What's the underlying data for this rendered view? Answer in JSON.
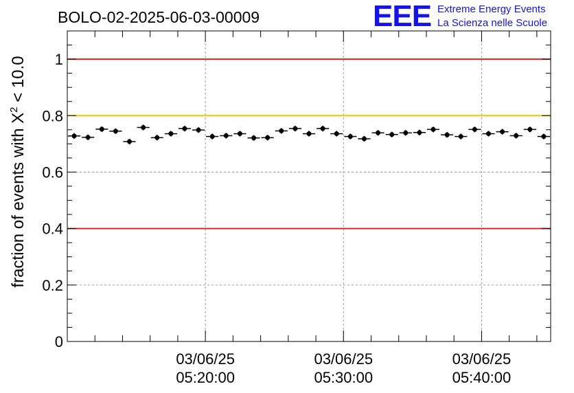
{
  "chart_data": {
    "type": "scatter",
    "title": "BOLO-02-2025-06-03-00009",
    "ylabel_prefix": "fraction of events with X",
    "ylabel_sup": "2",
    "ylabel_suffix": " < 10.0",
    "xlabel": "",
    "ylim": [
      0,
      1.1
    ],
    "yticks": [
      0,
      0.2,
      0.4,
      0.6,
      0.8,
      1
    ],
    "ytick_labels": [
      "0",
      "0.2",
      "0.4",
      "0.6",
      "0.8",
      "1"
    ],
    "x_unit": "minutes after 05:10:00",
    "xlim": [
      0,
      35
    ],
    "xticks": [
      {
        "x": 10,
        "date": "03/06/25",
        "time": "05:20:00"
      },
      {
        "x": 20,
        "date": "03/06/25",
        "time": "05:30:00"
      },
      {
        "x": 30,
        "date": "03/06/25",
        "time": "05:40:00"
      }
    ],
    "grid": true,
    "reference_lines": [
      {
        "y": 1.0,
        "color": "#e8211a"
      },
      {
        "y": 0.8,
        "color": "#f5c400"
      },
      {
        "y": 0.4,
        "color": "#e8211a"
      }
    ],
    "series": [
      {
        "name": "fraction",
        "color": "#000000",
        "bin_width": 1,
        "x": [
          0.5,
          1.5,
          2.5,
          3.5,
          4.5,
          5.5,
          6.5,
          7.5,
          8.5,
          9.5,
          10.5,
          11.5,
          12.5,
          13.5,
          14.5,
          15.5,
          16.5,
          17.5,
          18.5,
          19.5,
          20.5,
          21.5,
          22.5,
          23.5,
          24.5,
          25.5,
          26.5,
          27.5,
          28.5,
          29.5,
          30.5,
          31.5,
          32.5,
          33.5,
          34.5
        ],
        "y": [
          0.728,
          0.723,
          0.752,
          0.745,
          0.708,
          0.758,
          0.722,
          0.736,
          0.754,
          0.749,
          0.726,
          0.729,
          0.736,
          0.721,
          0.722,
          0.746,
          0.754,
          0.736,
          0.754,
          0.736,
          0.726,
          0.718,
          0.739,
          0.733,
          0.739,
          0.74,
          0.751,
          0.732,
          0.726,
          0.751,
          0.736,
          0.743,
          0.729,
          0.751,
          0.726
        ],
        "err": [
          0.01,
          0.01,
          0.01,
          0.01,
          0.01,
          0.01,
          0.01,
          0.01,
          0.01,
          0.01,
          0.01,
          0.01,
          0.01,
          0.01,
          0.01,
          0.01,
          0.01,
          0.01,
          0.01,
          0.01,
          0.01,
          0.01,
          0.01,
          0.01,
          0.01,
          0.01,
          0.01,
          0.01,
          0.01,
          0.01,
          0.01,
          0.01,
          0.01,
          0.01,
          0.01
        ]
      }
    ]
  },
  "logo": {
    "mark": "EEE",
    "line1": "Extreme Energy Events",
    "line2": "La Scienza nelle Scuole",
    "color": "#1414e6"
  }
}
